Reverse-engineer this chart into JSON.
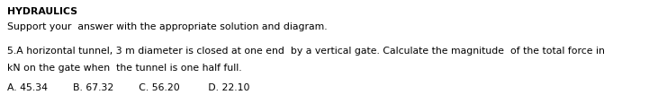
{
  "title": "HYDRAULICS",
  "subtitle": "Support your  answer with the appropriate solution and diagram.",
  "question_line1": "5.A horizontal tunnel, 3 m diameter is closed at one end  by a vertical gate. Calculate the magnitude  of the total force in",
  "question_line2": "kN on the gate when  the tunnel is one half full.",
  "choices": "A. 45.34        B. 67.32        C. 56.20         D. 22.10",
  "bg_color": "#ffffff",
  "text_color": "#000000",
  "title_fontsize": 7.8,
  "body_fontsize": 7.8
}
